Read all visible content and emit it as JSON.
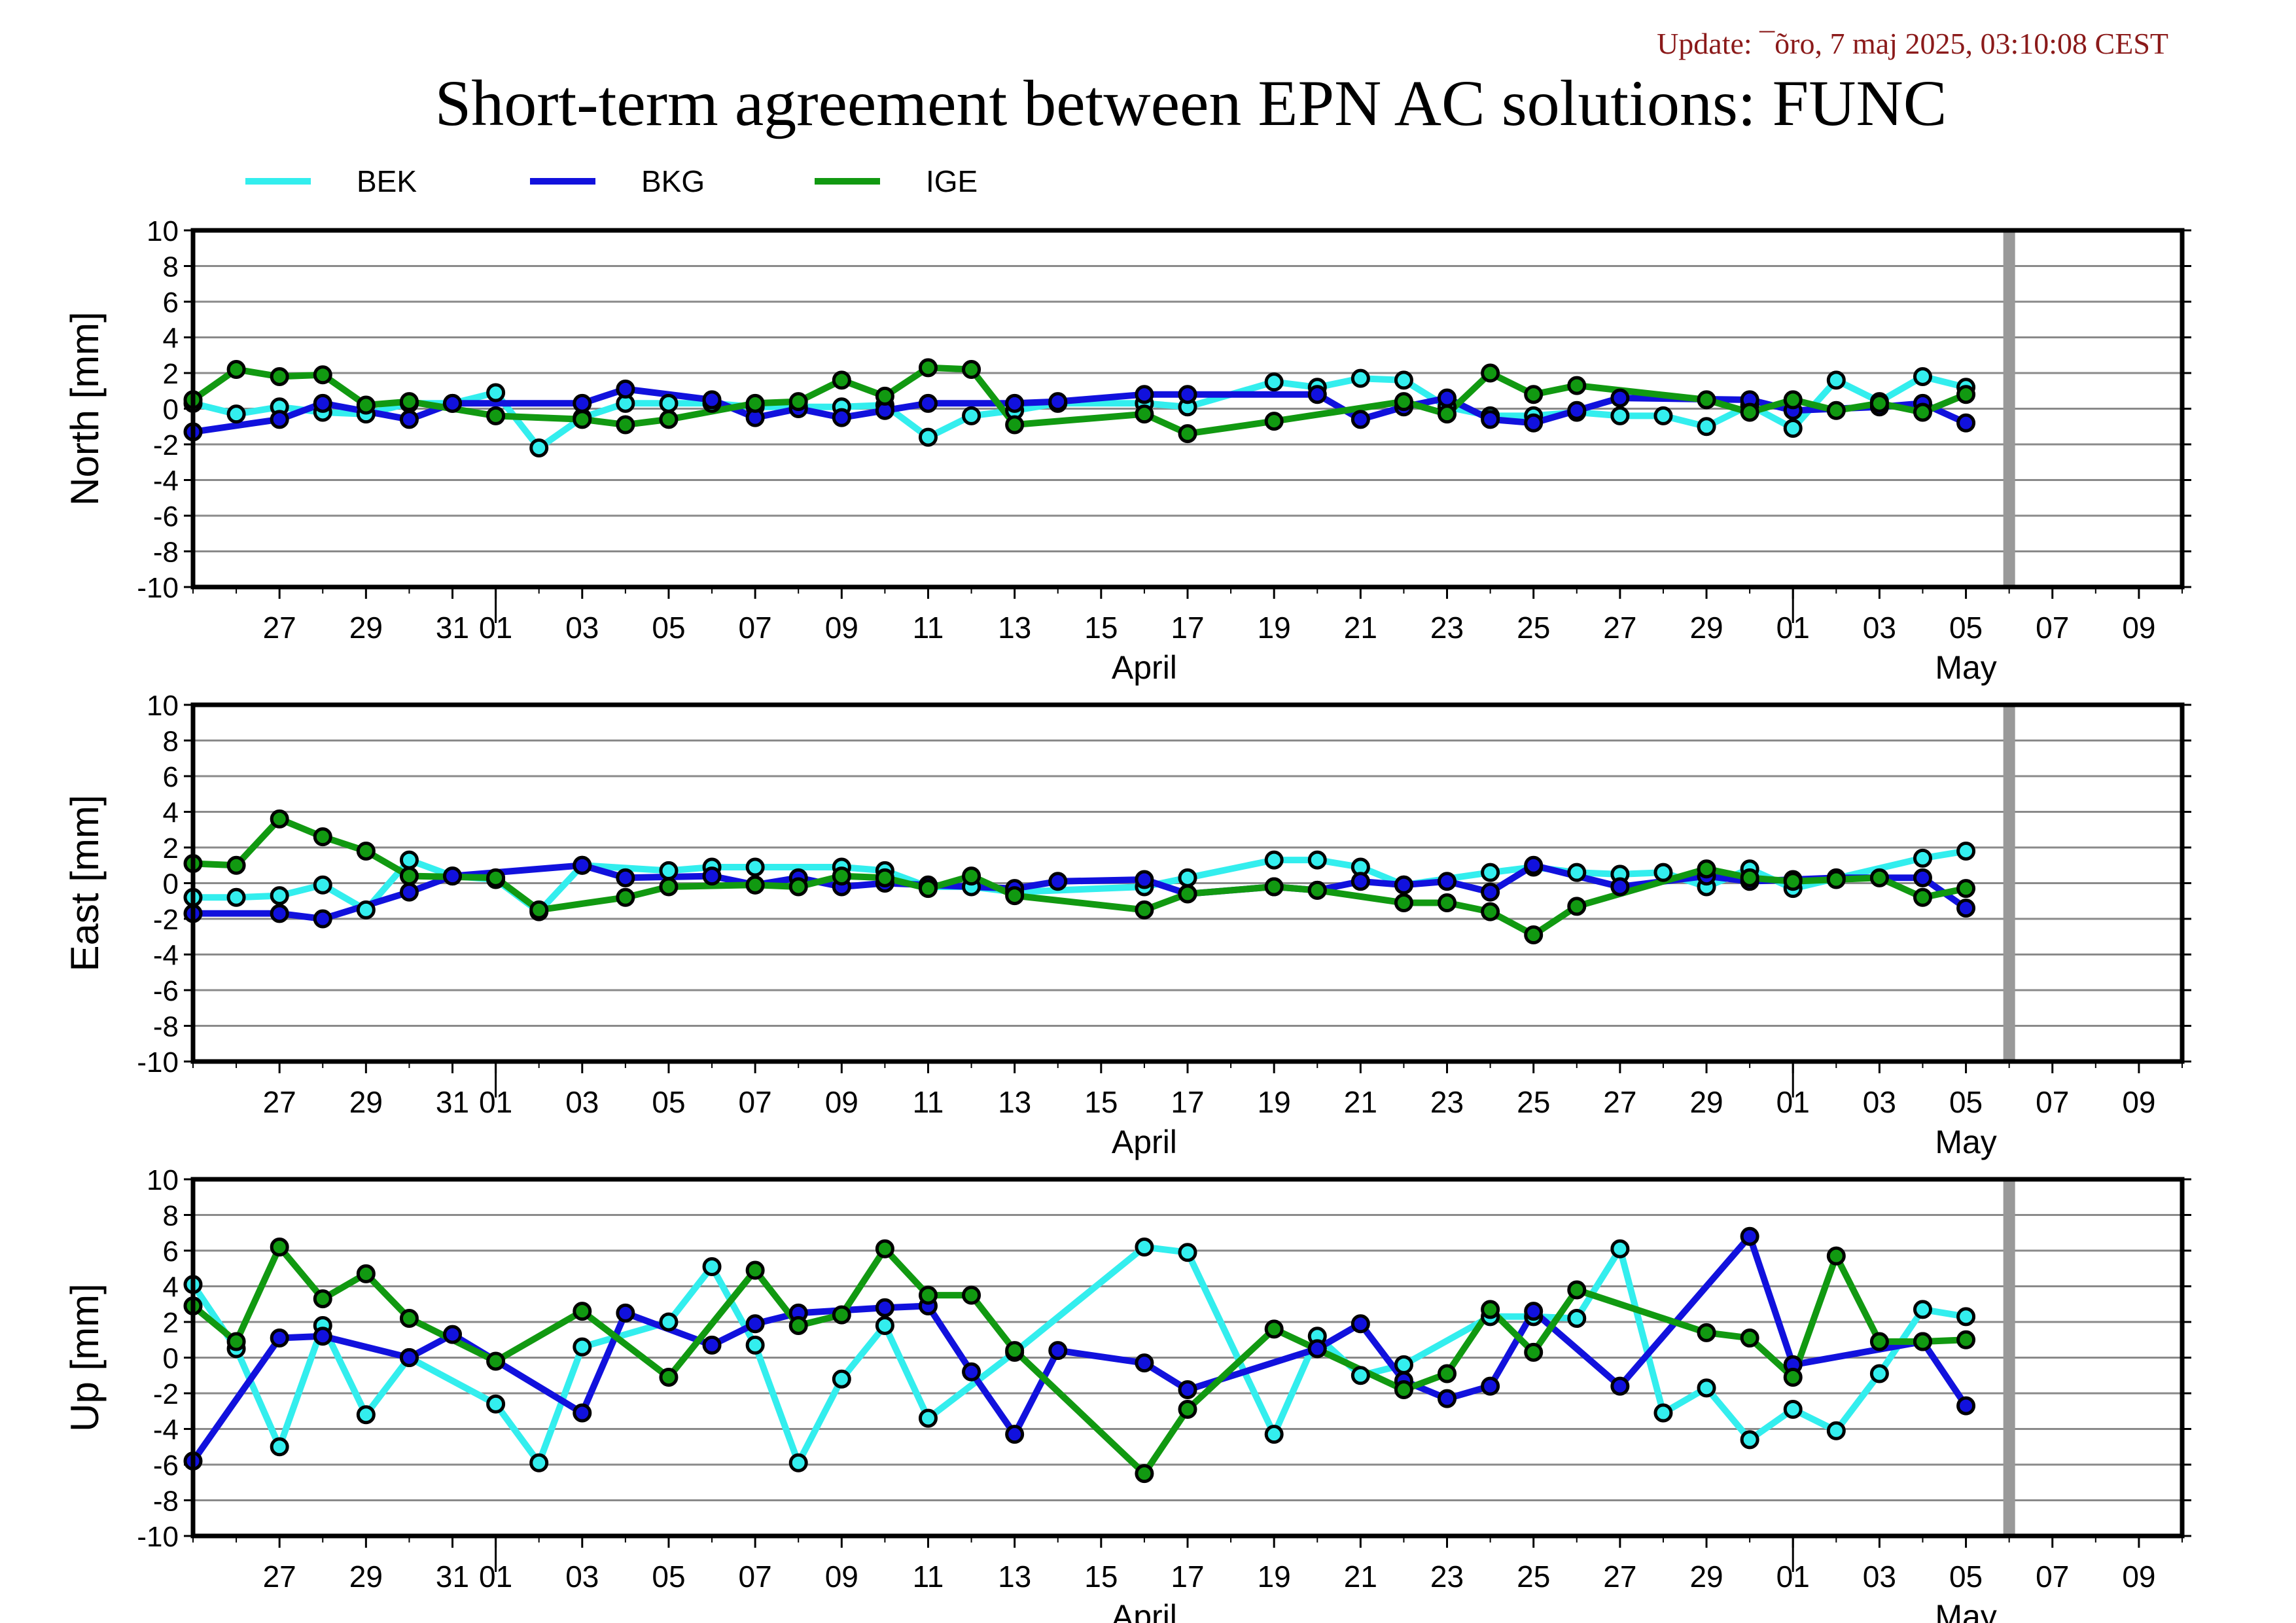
{
  "update": "Update: ¯õro, 7 maj 2025, 03:10:08 CEST",
  "title": "Short-term agreement between EPN AC solutions: FUNC",
  "colors": {
    "BEK": "#33eeee",
    "BKG": "#1111dd",
    "IGE": "#119911",
    "marker_line": "#000000",
    "today_bar": "#999999"
  },
  "chart_data": {
    "type": "line",
    "legend": [
      "BEK",
      "BKG",
      "IGE"
    ],
    "legend_position": "top-left",
    "grid": true,
    "x_range": [
      "2025-03-25",
      "2025-05-10"
    ],
    "x_ticks": [
      "27",
      "29",
      "31",
      "01",
      "03",
      "05",
      "07",
      "09",
      "11",
      "13",
      "15",
      "17",
      "19",
      "21",
      "23",
      "25",
      "27",
      "29",
      "01",
      "03",
      "05",
      "07",
      "09"
    ],
    "month_labels": [
      "April",
      "May"
    ],
    "today_marker": "2025-05-06",
    "panels": [
      {
        "ylabel": "North [mm]",
        "ylim": [
          -10,
          10
        ],
        "yticks": [
          10,
          8,
          6,
          4,
          2,
          0,
          -2,
          -4,
          -6,
          -8,
          -10
        ],
        "series": [
          {
            "name": "BEK",
            "x": [
              "2025-03-25",
              "2025-03-26",
              "2025-03-27",
              "2025-03-28",
              "2025-03-29",
              "2025-03-30",
              "2025-03-31",
              "2025-04-01",
              "2025-04-02",
              "2025-04-03",
              "2025-04-04",
              "2025-04-05",
              "2025-04-06",
              "2025-04-07",
              "2025-04-08",
              "2025-04-09",
              "2025-04-10",
              "2025-04-11",
              "2025-04-12",
              "2025-04-13",
              "2025-04-14",
              "2025-04-16",
              "2025-04-17",
              "2025-04-19",
              "2025-04-20",
              "2025-04-21",
              "2025-04-22",
              "2025-04-23",
              "2025-04-24",
              "2025-04-25",
              "2025-04-26",
              "2025-04-27",
              "2025-04-28",
              "2025-04-29",
              "2025-04-30",
              "2025-05-01",
              "2025-05-02",
              "2025-05-03",
              "2025-05-04",
              "2025-05-05"
            ],
            "y": [
              0.3,
              -0.3,
              0.1,
              -0.2,
              -0.3,
              0.3,
              0.3,
              0.9,
              -2.2,
              -0.5,
              0.3,
              0.3,
              0.3,
              0.1,
              0.1,
              0.1,
              0.2,
              -1.6,
              -0.4,
              -0.1,
              0.3,
              0.3,
              0.1,
              1.5,
              1.2,
              1.7,
              1.6,
              0.1,
              -0.4,
              -0.4,
              -0.2,
              -0.4,
              -0.4,
              -1.0,
              0.2,
              -1.1,
              1.6,
              0.4,
              1.8,
              1.2
            ]
          },
          {
            "name": "BKG",
            "x": [
              "2025-03-25",
              "2025-03-27",
              "2025-03-28",
              "2025-03-30",
              "2025-03-31",
              "2025-04-03",
              "2025-04-04",
              "2025-04-06",
              "2025-04-07",
              "2025-04-08",
              "2025-04-09",
              "2025-04-10",
              "2025-04-11",
              "2025-04-13",
              "2025-04-14",
              "2025-04-16",
              "2025-04-17",
              "2025-04-20",
              "2025-04-21",
              "2025-04-22",
              "2025-04-23",
              "2025-04-24",
              "2025-04-25",
              "2025-04-26",
              "2025-04-27",
              "2025-04-30",
              "2025-05-01",
              "2025-05-03",
              "2025-05-04",
              "2025-05-05"
            ],
            "y": [
              -1.3,
              -0.6,
              0.3,
              -0.6,
              0.3,
              0.3,
              1.1,
              0.5,
              -0.5,
              0.0,
              -0.5,
              -0.1,
              0.3,
              0.3,
              0.4,
              0.8,
              0.8,
              0.8,
              -0.6,
              0.1,
              0.6,
              -0.6,
              -0.8,
              -0.1,
              0.6,
              0.5,
              -0.1,
              0.1,
              0.3,
              -0.8
            ]
          },
          {
            "name": "IGE",
            "x": [
              "2025-03-25",
              "2025-03-26",
              "2025-03-27",
              "2025-03-28",
              "2025-03-29",
              "2025-03-30",
              "2025-04-01",
              "2025-04-03",
              "2025-04-04",
              "2025-04-05",
              "2025-04-07",
              "2025-04-08",
              "2025-04-09",
              "2025-04-10",
              "2025-04-11",
              "2025-04-12",
              "2025-04-13",
              "2025-04-16",
              "2025-04-17",
              "2025-04-19",
              "2025-04-22",
              "2025-04-23",
              "2025-04-24",
              "2025-04-25",
              "2025-04-26",
              "2025-04-29",
              "2025-04-30",
              "2025-05-01",
              "2025-05-02",
              "2025-05-03",
              "2025-05-04",
              "2025-05-05"
            ],
            "y": [
              0.5,
              2.2,
              1.8,
              1.9,
              0.2,
              0.4,
              -0.4,
              -0.6,
              -0.9,
              -0.6,
              0.3,
              0.4,
              1.6,
              0.7,
              2.3,
              2.2,
              -0.9,
              -0.3,
              -1.4,
              -0.7,
              0.4,
              -0.3,
              2.0,
              0.8,
              1.3,
              0.5,
              -0.2,
              0.5,
              -0.1,
              0.3,
              -0.2,
              0.8
            ]
          }
        ]
      },
      {
        "ylabel": "East [mm]",
        "ylim": [
          -10,
          10
        ],
        "yticks": [
          10,
          8,
          6,
          4,
          2,
          0,
          -2,
          -4,
          -6,
          -8,
          -10
        ],
        "series": [
          {
            "name": "BEK",
            "x": [
              "2025-03-25",
              "2025-03-26",
              "2025-03-27",
              "2025-03-28",
              "2025-03-29",
              "2025-03-30",
              "2025-03-31",
              "2025-04-01",
              "2025-04-02",
              "2025-04-03",
              "2025-04-05",
              "2025-04-06",
              "2025-04-07",
              "2025-04-09",
              "2025-04-10",
              "2025-04-11",
              "2025-04-12",
              "2025-04-13",
              "2025-04-16",
              "2025-04-17",
              "2025-04-19",
              "2025-04-20",
              "2025-04-21",
              "2025-04-22",
              "2025-04-24",
              "2025-04-25",
              "2025-04-26",
              "2025-04-27",
              "2025-04-28",
              "2025-04-29",
              "2025-04-30",
              "2025-05-01",
              "2025-05-04",
              "2025-05-05"
            ],
            "y": [
              -0.8,
              -0.8,
              -0.7,
              -0.1,
              -1.5,
              1.3,
              0.4,
              0.2,
              -1.6,
              1.0,
              0.7,
              0.9,
              0.9,
              0.9,
              0.7,
              -0.2,
              -0.2,
              -0.5,
              -0.2,
              0.3,
              1.3,
              1.3,
              0.9,
              -0.1,
              0.6,
              0.9,
              0.6,
              0.5,
              0.6,
              -0.2,
              0.8,
              -0.3,
              1.4,
              1.8
            ]
          },
          {
            "name": "BKG",
            "x": [
              "2025-03-25",
              "2025-03-27",
              "2025-03-28",
              "2025-03-30",
              "2025-03-31",
              "2025-04-03",
              "2025-04-04",
              "2025-04-06",
              "2025-04-07",
              "2025-04-08",
              "2025-04-09",
              "2025-04-10",
              "2025-04-11",
              "2025-04-13",
              "2025-04-14",
              "2025-04-16",
              "2025-04-17",
              "2025-04-19",
              "2025-04-20",
              "2025-04-21",
              "2025-04-22",
              "2025-04-23",
              "2025-04-24",
              "2025-04-25",
              "2025-04-27",
              "2025-04-29",
              "2025-04-30",
              "2025-05-01",
              "2025-05-02",
              "2025-05-04",
              "2025-05-05"
            ],
            "y": [
              -1.7,
              -1.7,
              -2.0,
              -0.5,
              0.4,
              1.0,
              0.3,
              0.4,
              -0.1,
              0.3,
              -0.2,
              0.0,
              -0.1,
              -0.3,
              0.1,
              0.2,
              -0.6,
              -0.2,
              -0.4,
              0.1,
              -0.1,
              0.1,
              -0.5,
              1.0,
              -0.2,
              0.4,
              0.1,
              0.2,
              0.3,
              0.3,
              -1.4
            ]
          },
          {
            "name": "IGE",
            "x": [
              "2025-03-25",
              "2025-03-26",
              "2025-03-27",
              "2025-03-28",
              "2025-03-29",
              "2025-03-30",
              "2025-04-01",
              "2025-04-02",
              "2025-04-04",
              "2025-04-05",
              "2025-04-07",
              "2025-04-08",
              "2025-04-09",
              "2025-04-10",
              "2025-04-11",
              "2025-04-12",
              "2025-04-13",
              "2025-04-16",
              "2025-04-17",
              "2025-04-19",
              "2025-04-20",
              "2025-04-22",
              "2025-04-23",
              "2025-04-24",
              "2025-04-25",
              "2025-04-26",
              "2025-04-29",
              "2025-04-30",
              "2025-05-01",
              "2025-05-02",
              "2025-05-03",
              "2025-05-04",
              "2025-05-05"
            ],
            "y": [
              1.1,
              1.0,
              3.6,
              2.6,
              1.8,
              0.4,
              0.3,
              -1.5,
              -0.8,
              -0.2,
              -0.1,
              -0.2,
              0.4,
              0.3,
              -0.3,
              0.4,
              -0.7,
              -1.5,
              -0.6,
              -0.2,
              -0.4,
              -1.1,
              -1.1,
              -1.6,
              -2.9,
              -1.3,
              0.8,
              0.3,
              0.1,
              0.2,
              0.3,
              -0.8,
              -0.3
            ]
          }
        ]
      },
      {
        "ylabel": "Up [mm]",
        "ylim": [
          -10,
          10
        ],
        "yticks": [
          10,
          8,
          6,
          4,
          2,
          0,
          -2,
          -4,
          -6,
          -8,
          -10
        ],
        "series": [
          {
            "name": "BEK",
            "x": [
              "2025-03-25",
              "2025-03-26",
              "2025-03-27",
              "2025-03-28",
              "2025-03-29",
              "2025-03-30",
              "2025-04-01",
              "2025-04-02",
              "2025-04-03",
              "2025-04-05",
              "2025-04-06",
              "2025-04-07",
              "2025-04-08",
              "2025-04-09",
              "2025-04-10",
              "2025-04-11",
              "2025-04-13",
              "2025-04-16",
              "2025-04-17",
              "2025-04-19",
              "2025-04-20",
              "2025-04-21",
              "2025-04-22",
              "2025-04-24",
              "2025-04-25",
              "2025-04-26",
              "2025-04-27",
              "2025-04-28",
              "2025-04-29",
              "2025-04-30",
              "2025-05-01",
              "2025-05-02",
              "2025-05-03",
              "2025-05-04",
              "2025-05-05"
            ],
            "y": [
              4.1,
              0.5,
              -5.0,
              1.8,
              -3.2,
              0.0,
              -2.6,
              -5.9,
              0.6,
              2.0,
              5.1,
              0.7,
              -5.9,
              -1.2,
              1.8,
              -3.4,
              0.3,
              6.2,
              5.9,
              -4.3,
              1.2,
              -1.0,
              -0.4,
              2.3,
              2.3,
              2.2,
              6.1,
              -3.1,
              -1.7,
              -4.6,
              -2.9,
              -4.1,
              -0.9,
              2.7,
              2.3
            ]
          },
          {
            "name": "BKG",
            "x": [
              "2025-03-25",
              "2025-03-27",
              "2025-03-28",
              "2025-03-30",
              "2025-03-31",
              "2025-04-03",
              "2025-04-04",
              "2025-04-06",
              "2025-04-07",
              "2025-04-08",
              "2025-04-10",
              "2025-04-11",
              "2025-04-12",
              "2025-04-13",
              "2025-04-14",
              "2025-04-16",
              "2025-04-17",
              "2025-04-20",
              "2025-04-21",
              "2025-04-22",
              "2025-04-23",
              "2025-04-24",
              "2025-04-25",
              "2025-04-27",
              "2025-04-30",
              "2025-05-01",
              "2025-05-04",
              "2025-05-05"
            ],
            "y": [
              -5.8,
              1.1,
              1.2,
              0.0,
              1.3,
              -3.1,
              2.5,
              0.7,
              1.9,
              2.5,
              2.8,
              2.9,
              -0.8,
              -4.3,
              0.4,
              -0.3,
              -1.8,
              0.5,
              1.9,
              -1.3,
              -2.3,
              -1.6,
              2.6,
              -1.6,
              6.8,
              -0.4,
              0.9,
              -2.7
            ]
          },
          {
            "name": "IGE",
            "x": [
              "2025-03-25",
              "2025-03-26",
              "2025-03-27",
              "2025-03-28",
              "2025-03-29",
              "2025-03-30",
              "2025-04-01",
              "2025-04-03",
              "2025-04-05",
              "2025-04-07",
              "2025-04-08",
              "2025-04-09",
              "2025-04-10",
              "2025-04-11",
              "2025-04-12",
              "2025-04-13",
              "2025-04-16",
              "2025-04-17",
              "2025-04-19",
              "2025-04-22",
              "2025-04-23",
              "2025-04-24",
              "2025-04-25",
              "2025-04-26",
              "2025-04-29",
              "2025-04-30",
              "2025-05-01",
              "2025-05-02",
              "2025-05-03",
              "2025-05-04",
              "2025-05-05"
            ],
            "y": [
              2.9,
              0.9,
              6.2,
              3.3,
              4.7,
              2.2,
              -0.2,
              2.6,
              -1.1,
              4.9,
              1.8,
              2.4,
              6.1,
              3.5,
              3.5,
              0.4,
              -6.5,
              -2.9,
              1.6,
              -1.8,
              -0.9,
              2.7,
              0.3,
              3.8,
              1.4,
              1.1,
              -1.1,
              5.7,
              0.9,
              0.9,
              1.0
            ]
          }
        ]
      }
    ]
  }
}
